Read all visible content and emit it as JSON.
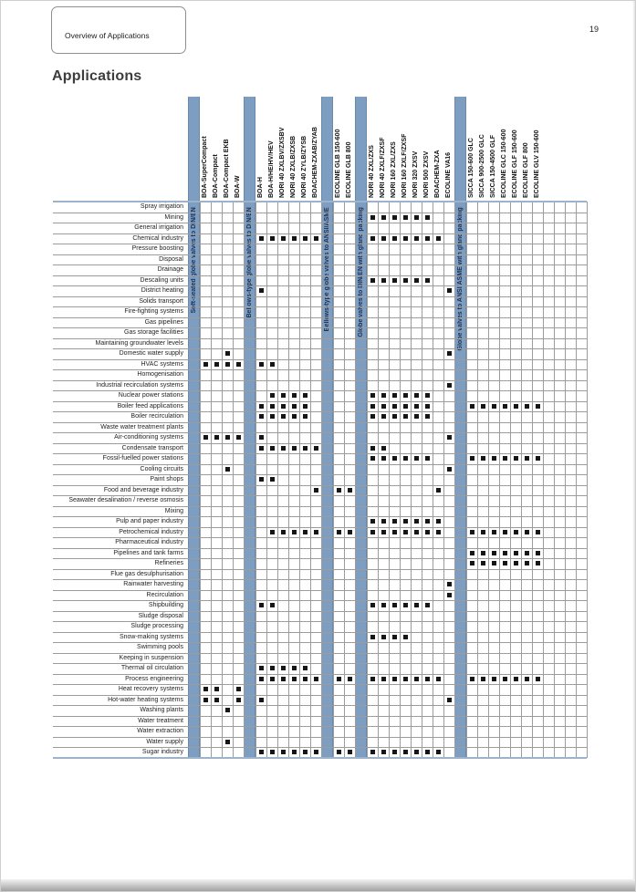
{
  "page": {
    "tab_label": "Overview of Applications",
    "page_number": "19",
    "title": "Applications"
  },
  "colors": {
    "bar": "#7d9ec1",
    "bar_border": "#6b8aa9",
    "bar_text": "#1c3156",
    "grid_line": "#9c9c9c",
    "boundary_line": "#9db3cb",
    "mark": "#161616"
  },
  "matrix": {
    "groups": [
      {
        "bar_label": "Soft-seated globe valves to DIN/EN",
        "products": [
          "BOA-SuperCompact",
          "BOA-Compact",
          "BOA-Compact EKB",
          "BOA-W"
        ]
      },
      {
        "bar_label": "Bellows-type globe valves to DIN/EN",
        "products": [
          "BOA-H",
          "BOA-H/HE/HV/HEV",
          "NORI 40 ZXLBV/ZXSBV",
          "NORI 40 ZXLB/ZXSB",
          "NORI 40 ZYLB/ZYSB",
          "BOACHEM-ZXAB/ZYAB"
        ]
      },
      {
        "bar_label": "Bellows-type globe valves to ANSI/ASME",
        "products": [
          "ECOLINE GLB 150-600",
          "ECOLINE GLB 800"
        ]
      },
      {
        "bar_label": "Globe valves to DIN/EN with gland packing",
        "products": [
          "NORI 40 ZXL/ZXS",
          "NORI 40 ZXLF/ZXSF",
          "NORI 160 ZXL/ZXS",
          "NORI 160 ZXLF/ZXSF",
          "NORI 320 ZXSV",
          "NORI 500 ZXSV",
          "BOACHEM-ZXA",
          "ECOLINE VA16"
        ]
      },
      {
        "bar_label": "Globe valves to ANSI/ASME with gland packing",
        "products": [
          "SICCA 150-600 GLC",
          "SICCA 900-2500 GLC",
          "SICCA 150-4500 GLF",
          "ECOLINE GLC 150-600",
          "ECOLINE GLF 150-600",
          "ECOLINE GLF 800",
          "ECOLINE GLV 150-600"
        ]
      }
    ],
    "trailing_empty_columns": 4,
    "rows": [
      {
        "label": "Spray irrigation",
        "marks": []
      },
      {
        "label": "Mining",
        "marks": [
          "NORI 40 ZXL/ZXS",
          "NORI 40 ZXLF/ZXSF",
          "NORI 160 ZXL/ZXS",
          "NORI 160 ZXLF/ZXSF",
          "NORI 320 ZXSV",
          "NORI 500 ZXSV"
        ]
      },
      {
        "label": "General irrigation",
        "marks": []
      },
      {
        "label": "Chemical industry",
        "marks": [
          "BOA-H",
          "BOA-H/HE/HV/HEV",
          "NORI 40 ZXLBV/ZXSBV",
          "NORI 40 ZXLB/ZXSB",
          "NORI 40 ZYLB/ZYSB",
          "BOACHEM-ZXAB/ZYAB",
          "NORI 40 ZXL/ZXS",
          "NORI 40 ZXLF/ZXSF",
          "NORI 160 ZXL/ZXS",
          "NORI 160 ZXLF/ZXSF",
          "NORI 320 ZXSV",
          "NORI 500 ZXSV",
          "BOACHEM-ZXA"
        ]
      },
      {
        "label": "Pressure boosting",
        "marks": []
      },
      {
        "label": "Disposal",
        "marks": []
      },
      {
        "label": "Drainage",
        "marks": []
      },
      {
        "label": "Descaling units",
        "marks": [
          "NORI 40 ZXL/ZXS",
          "NORI 40 ZXLF/ZXSF",
          "NORI 160 ZXL/ZXS",
          "NORI 160 ZXLF/ZXSF",
          "NORI 320 ZXSV",
          "NORI 500 ZXSV"
        ]
      },
      {
        "label": "District heating",
        "marks": [
          "BOA-H",
          "ECOLINE VA16"
        ]
      },
      {
        "label": "Solids transport",
        "marks": []
      },
      {
        "label": "Fire-fighting systems",
        "marks": []
      },
      {
        "label": "Gas pipelines",
        "marks": []
      },
      {
        "label": "Gas storage facilities",
        "marks": []
      },
      {
        "label": "Maintaining groundwater levels",
        "marks": []
      },
      {
        "label": "Domestic water supply",
        "marks": [
          "BOA-Compact EKB",
          "ECOLINE VA16"
        ]
      },
      {
        "label": "HVAC systems",
        "marks": [
          "BOA-SuperCompact",
          "BOA-Compact",
          "BOA-Compact EKB",
          "BOA-W",
          "BOA-H",
          "BOA-H/HE/HV/HEV"
        ]
      },
      {
        "label": "Homogenisation",
        "marks": []
      },
      {
        "label": "Industrial recirculation systems",
        "marks": [
          "ECOLINE VA16"
        ]
      },
      {
        "label": "Nuclear power stations",
        "marks": [
          "BOA-H/HE/HV/HEV",
          "NORI 40 ZXLBV/ZXSBV",
          "NORI 40 ZXLB/ZXSB",
          "NORI 40 ZYLB/ZYSB",
          "NORI 40 ZXL/ZXS",
          "NORI 40 ZXLF/ZXSF",
          "NORI 160 ZXL/ZXS",
          "NORI 160 ZXLF/ZXSF",
          "NORI 320 ZXSV",
          "NORI 500 ZXSV"
        ]
      },
      {
        "label": "Boiler feed applications",
        "marks": [
          "BOA-H",
          "BOA-H/HE/HV/HEV",
          "NORI 40 ZXLBV/ZXSBV",
          "NORI 40 ZXLB/ZXSB",
          "NORI 40 ZYLB/ZYSB",
          "NORI 40 ZXL/ZXS",
          "NORI 40 ZXLF/ZXSF",
          "NORI 160 ZXL/ZXS",
          "NORI 160 ZXLF/ZXSF",
          "NORI 320 ZXSV",
          "NORI 500 ZXSV",
          "SICCA 150-600 GLC",
          "SICCA 900-2500 GLC",
          "SICCA 150-4500 GLF",
          "ECOLINE GLC 150-600",
          "ECOLINE GLF 150-600",
          "ECOLINE GLF 800",
          "ECOLINE GLV 150-600"
        ]
      },
      {
        "label": "Boiler recirculation",
        "marks": [
          "BOA-H",
          "BOA-H/HE/HV/HEV",
          "NORI 40 ZXLBV/ZXSBV",
          "NORI 40 ZXLB/ZXSB",
          "NORI 40 ZYLB/ZYSB",
          "NORI 40 ZXL/ZXS",
          "NORI 40 ZXLF/ZXSF",
          "NORI 160 ZXL/ZXS",
          "NORI 160 ZXLF/ZXSF",
          "NORI 320 ZXSV",
          "NORI 500 ZXSV"
        ]
      },
      {
        "label": "Waste water treatment plants",
        "marks": []
      },
      {
        "label": "Air-conditioning systems",
        "marks": [
          "BOA-SuperCompact",
          "BOA-Compact",
          "BOA-Compact EKB",
          "BOA-W",
          "BOA-H",
          "ECOLINE VA16"
        ]
      },
      {
        "label": "Condensate transport",
        "marks": [
          "BOA-H",
          "BOA-H/HE/HV/HEV",
          "NORI 40 ZXLBV/ZXSBV",
          "NORI 40 ZXLB/ZXSB",
          "NORI 40 ZYLB/ZYSB",
          "BOACHEM-ZXAB/ZYAB",
          "NORI 40 ZXL/ZXS",
          "NORI 40 ZXLF/ZXSF"
        ]
      },
      {
        "label": "Fossil-fuelled power stations",
        "marks": [
          "NORI 40 ZXL/ZXS",
          "NORI 40 ZXLF/ZXSF",
          "NORI 160 ZXL/ZXS",
          "NORI 160 ZXLF/ZXSF",
          "NORI 320 ZXSV",
          "NORI 500 ZXSV",
          "SICCA 150-600 GLC",
          "SICCA 900-2500 GLC",
          "SICCA 150-4500 GLF",
          "ECOLINE GLC 150-600",
          "ECOLINE GLF 150-600",
          "ECOLINE GLF 800",
          "ECOLINE GLV 150-600"
        ]
      },
      {
        "label": "Cooling circuits",
        "marks": [
          "BOA-Compact EKB",
          "ECOLINE VA16"
        ]
      },
      {
        "label": "Paint shops",
        "marks": [
          "BOA-H",
          "BOA-H/HE/HV/HEV"
        ]
      },
      {
        "label": "Food and beverage industry",
        "marks": [
          "BOACHEM-ZXAB/ZYAB",
          "ECOLINE GLB 150-600",
          "ECOLINE GLB 800",
          "BOACHEM-ZXA"
        ]
      },
      {
        "label": "Seawater desalination / reverse osmosis",
        "marks": []
      },
      {
        "label": "Mixing",
        "marks": []
      },
      {
        "label": "Pulp and paper industry",
        "marks": [
          "NORI 40 ZXL/ZXS",
          "NORI 40 ZXLF/ZXSF",
          "NORI 160 ZXL/ZXS",
          "NORI 160 ZXLF/ZXSF",
          "NORI 320 ZXSV",
          "NORI 500 ZXSV",
          "BOACHEM-ZXA"
        ]
      },
      {
        "label": "Petrochemical industry",
        "marks": [
          "BOA-H/HE/HV/HEV",
          "NORI 40 ZXLBV/ZXSBV",
          "NORI 40 ZXLB/ZXSB",
          "NORI 40 ZYLB/ZYSB",
          "BOACHEM-ZXAB/ZYAB",
          "ECOLINE GLB 150-600",
          "ECOLINE GLB 800",
          "NORI 40 ZXL/ZXS",
          "NORI 40 ZXLF/ZXSF",
          "NORI 160 ZXL/ZXS",
          "NORI 160 ZXLF/ZXSF",
          "NORI 320 ZXSV",
          "NORI 500 ZXSV",
          "BOACHEM-ZXA",
          "SICCA 150-600 GLC",
          "SICCA 900-2500 GLC",
          "SICCA 150-4500 GLF",
          "ECOLINE GLC 150-600",
          "ECOLINE GLF 150-600",
          "ECOLINE GLF 800",
          "ECOLINE GLV 150-600"
        ]
      },
      {
        "label": "Pharmaceutical industry",
        "marks": []
      },
      {
        "label": "Pipelines and tank farms",
        "marks": [
          "SICCA 150-600 GLC",
          "SICCA 900-2500 GLC",
          "SICCA 150-4500 GLF",
          "ECOLINE GLC 150-600",
          "ECOLINE GLF 150-600",
          "ECOLINE GLF 800",
          "ECOLINE GLV 150-600"
        ]
      },
      {
        "label": "Refineries",
        "marks": [
          "SICCA 150-600 GLC",
          "SICCA 900-2500 GLC",
          "SICCA 150-4500 GLF",
          "ECOLINE GLC 150-600",
          "ECOLINE GLF 150-600",
          "ECOLINE GLF 800",
          "ECOLINE GLV 150-600"
        ]
      },
      {
        "label": "Flue gas desulphurisation",
        "marks": []
      },
      {
        "label": "Rainwater harvesting",
        "marks": [
          "ECOLINE VA16"
        ]
      },
      {
        "label": "Recirculation",
        "marks": [
          "ECOLINE VA16"
        ]
      },
      {
        "label": "Shipbuilding",
        "marks": [
          "BOA-H",
          "BOA-H/HE/HV/HEV",
          "NORI 40 ZXL/ZXS",
          "NORI 40 ZXLF/ZXSF",
          "NORI 160 ZXL/ZXS",
          "NORI 160 ZXLF/ZXSF",
          "NORI 320 ZXSV",
          "NORI 500 ZXSV"
        ]
      },
      {
        "label": "Sludge disposal",
        "marks": []
      },
      {
        "label": "Sludge processing",
        "marks": []
      },
      {
        "label": "Snow-making systems",
        "marks": [
          "NORI 40 ZXL/ZXS",
          "NORI 40 ZXLF/ZXSF",
          "NORI 160 ZXL/ZXS",
          "NORI 160 ZXLF/ZXSF"
        ]
      },
      {
        "label": "Swimming pools",
        "marks": []
      },
      {
        "label": "Keeping in suspension",
        "marks": []
      },
      {
        "label": "Thermal oil circulation",
        "marks": [
          "BOA-H",
          "BOA-H/HE/HV/HEV",
          "NORI 40 ZXLBV/ZXSBV",
          "NORI 40 ZXLB/ZXSB",
          "NORI 40 ZYLB/ZYSB"
        ]
      },
      {
        "label": "Process engineering",
        "marks": [
          "BOA-H",
          "BOA-H/HE/HV/HEV",
          "NORI 40 ZXLBV/ZXSBV",
          "NORI 40 ZXLB/ZXSB",
          "NORI 40 ZYLB/ZYSB",
          "BOACHEM-ZXAB/ZYAB",
          "ECOLINE GLB 150-600",
          "ECOLINE GLB 800",
          "NORI 40 ZXL/ZXS",
          "NORI 40 ZXLF/ZXSF",
          "NORI 160 ZXL/ZXS",
          "NORI 160 ZXLF/ZXSF",
          "NORI 320 ZXSV",
          "NORI 500 ZXSV",
          "BOACHEM-ZXA",
          "SICCA 150-600 GLC",
          "SICCA 900-2500 GLC",
          "SICCA 150-4500 GLF",
          "ECOLINE GLC 150-600",
          "ECOLINE GLF 150-600",
          "ECOLINE GLF 800",
          "ECOLINE GLV 150-600"
        ]
      },
      {
        "label": "Heat recovery systems",
        "marks": [
          "BOA-SuperCompact",
          "BOA-Compact",
          "BOA-W"
        ]
      },
      {
        "label": "Hot-water heating systems",
        "marks": [
          "BOA-SuperCompact",
          "BOA-Compact",
          "BOA-W",
          "BOA-H",
          "ECOLINE VA16"
        ]
      },
      {
        "label": "Washing plants",
        "marks": [
          "BOA-Compact EKB"
        ]
      },
      {
        "label": "Water treatment",
        "marks": []
      },
      {
        "label": "Water extraction",
        "marks": []
      },
      {
        "label": "Water supply",
        "marks": [
          "BOA-Compact EKB"
        ]
      },
      {
        "label": "Sugar industry",
        "marks": [
          "BOA-H",
          "BOA-H/HE/HV/HEV",
          "NORI 40 ZXLBV/ZXSBV",
          "NORI 40 ZXLB/ZXSB",
          "NORI 40 ZYLB/ZYSB",
          "BOACHEM-ZXAB/ZYAB",
          "ECOLINE GLB 150-600",
          "ECOLINE GLB 800",
          "NORI 40 ZXL/ZXS",
          "NORI 40 ZXLF/ZXSF",
          "NORI 160 ZXL/ZXS",
          "NORI 160 ZXLF/ZXSF",
          "NORI 320 ZXSV",
          "NORI 500 ZXSV",
          "BOACHEM-ZXA"
        ]
      }
    ]
  }
}
